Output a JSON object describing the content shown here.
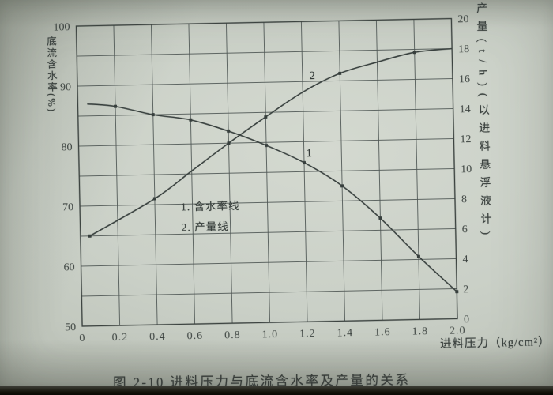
{
  "figure": {
    "caption": "图 2-10  进料压力与底流含水率及产量的关系"
  },
  "chart_data": {
    "type": "line",
    "title": "图 2-10 进料压力与底流含水率及产量的关系",
    "x_axis": {
      "label": "进料压力（kg/cm²）",
      "lim": [
        0,
        2.0
      ],
      "tick_values": [
        0,
        0.2,
        0.4,
        0.6,
        0.8,
        1.0,
        1.2,
        1.4,
        1.6,
        1.8,
        2.0
      ],
      "tick_labels": [
        "0",
        "0.2",
        "0.4",
        "0.6",
        "0.8",
        "1.0",
        "1.2",
        "1.4",
        "1.6",
        "1.8",
        "2.0"
      ]
    },
    "left_axis": {
      "label": "底流含水率(%)",
      "lim": [
        50,
        100
      ],
      "tick_values": [
        100,
        90,
        80,
        70,
        60,
        50
      ],
      "grid_step": 5
    },
    "right_axis": {
      "label": "产量(t/h)(以进料悬浮液计)",
      "lim": [
        0,
        20
      ],
      "tick_values": [
        20,
        18,
        16,
        14,
        12,
        10,
        8,
        6,
        4,
        2,
        0
      ],
      "grid_step": 2
    },
    "grid": true,
    "legend": {
      "items": [
        "1. 含水率线",
        "2. 产量线"
      ],
      "position": "inside-middle-left"
    },
    "series": [
      {
        "name": "含水率线",
        "curve_label": "1",
        "axis": "left",
        "x": [
          0.05,
          0.2,
          0.4,
          0.6,
          0.8,
          1.0,
          1.2,
          1.4,
          1.6,
          1.8,
          2.0
        ],
        "y": [
          87,
          86.5,
          85,
          84,
          82,
          79.5,
          76.5,
          72.5,
          67,
          60.5,
          54.5
        ],
        "marker_indices": [
          1,
          2,
          3,
          4,
          5,
          6,
          7,
          8,
          9,
          10
        ]
      },
      {
        "name": "产量线",
        "curve_label": "2",
        "axis": "right",
        "x": [
          0.05,
          0.4,
          0.6,
          0.8,
          1.0,
          1.2,
          1.4,
          1.6,
          1.8,
          2.0
        ],
        "y": [
          6,
          8.4,
          10.2,
          12,
          13.7,
          15.3,
          16.5,
          17.2,
          17.8,
          18
        ],
        "marker_indices": [
          0,
          1,
          3,
          4,
          6,
          8
        ]
      }
    ]
  },
  "colors": {
    "paper": "#c9cfc6",
    "ink": "#3b423f",
    "grid": "#4f5754",
    "curve": "#373f3d"
  }
}
